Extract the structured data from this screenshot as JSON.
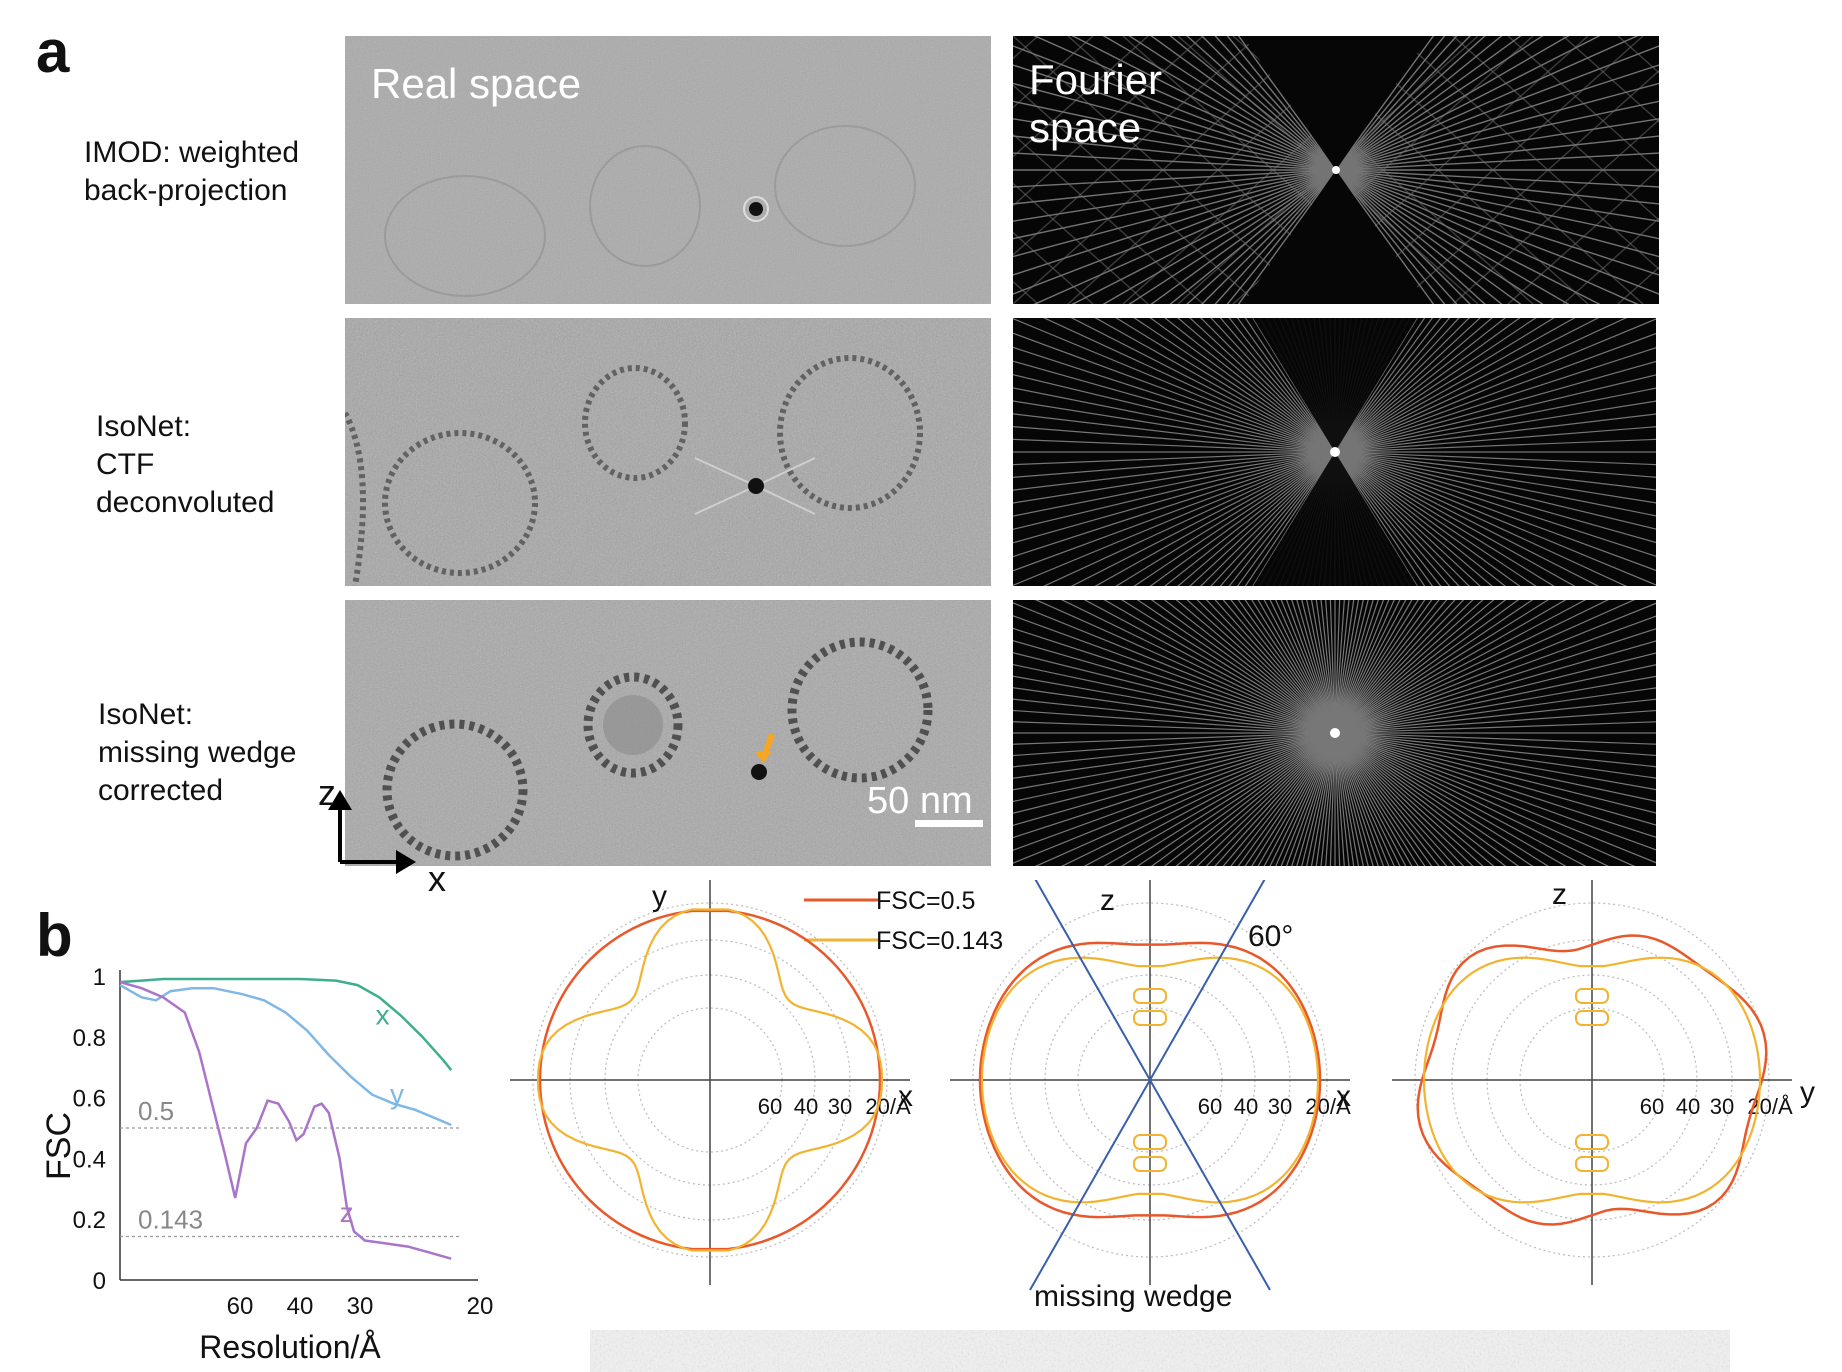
{
  "panels": {
    "a": "a",
    "b": "b"
  },
  "panel_a": {
    "column_headers": {
      "real_space": "Real space",
      "fourier_space": "Fourier\nspace"
    },
    "rows": [
      {
        "label": "IMOD: weighted\nback-projection"
      },
      {
        "label": "IsoNet:\nCTF\ndeconvoluted"
      },
      {
        "label": "IsoNet:\nmissing wedge\ncorrected"
      }
    ],
    "scale_bar": "50 nm",
    "axes": {
      "vertical": "z",
      "horizontal": "x"
    },
    "colors": {
      "real_bg": "#a8a8a8",
      "fourier_bg": "#050505",
      "arrow": "#f5a623"
    }
  },
  "panel_b": {
    "fsc_legend": {
      "fsc05": "FSC=0.5",
      "fsc0143": "FSC=0.143"
    },
    "polar_plots": [
      {
        "vertical": "y",
        "horizontal": "x",
        "ticks": [
          "60",
          "40",
          "30",
          "20/Å"
        ]
      },
      {
        "vertical": "z",
        "horizontal": "x",
        "ticks": [
          "60",
          "40",
          "30",
          "20/Å"
        ],
        "angle_label": "60°",
        "wedge_label": "missing wedge"
      },
      {
        "vertical": "z",
        "horizontal": "y",
        "ticks": [
          "60",
          "40",
          "30",
          "20/Å"
        ]
      }
    ],
    "colors": {
      "fsc05": "#e8582a",
      "fsc0143": "#f2b430",
      "wedge_lines": "#3a5dae"
    }
  },
  "chart_data": {
    "type": "line",
    "xlabel": "Resolution/Å",
    "ylabel": "FSC",
    "x_tick_labels": [
      "60",
      "40",
      "30",
      "20"
    ],
    "y_tick_labels": [
      "1",
      "0.8",
      "0.6",
      "0.4",
      "0.2",
      "0"
    ],
    "ylim": [
      0,
      1
    ],
    "x_unit": "spatial frequency (1/Å)",
    "reference_lines": [
      {
        "label": "0.5",
        "y": 0.5
      },
      {
        "label": "0.143",
        "y": 0.143
      }
    ],
    "series": [
      {
        "name": "x",
        "color": "#3fae8f",
        "points": [
          [
            0.0,
            0.98
          ],
          [
            0.003,
            0.985
          ],
          [
            0.006,
            0.99
          ],
          [
            0.01,
            0.99
          ],
          [
            0.015,
            0.99
          ],
          [
            0.02,
            0.99
          ],
          [
            0.025,
            0.99
          ],
          [
            0.03,
            0.985
          ],
          [
            0.033,
            0.97
          ],
          [
            0.036,
            0.93
          ],
          [
            0.039,
            0.87
          ],
          [
            0.042,
            0.8
          ],
          [
            0.045,
            0.72
          ],
          [
            0.046,
            0.69
          ]
        ]
      },
      {
        "name": "y",
        "color": "#7fb8e6",
        "points": [
          [
            0.0,
            0.97
          ],
          [
            0.003,
            0.93
          ],
          [
            0.005,
            0.92
          ],
          [
            0.007,
            0.95
          ],
          [
            0.01,
            0.96
          ],
          [
            0.013,
            0.96
          ],
          [
            0.017,
            0.94
          ],
          [
            0.02,
            0.92
          ],
          [
            0.023,
            0.88
          ],
          [
            0.026,
            0.82
          ],
          [
            0.029,
            0.74
          ],
          [
            0.032,
            0.67
          ],
          [
            0.035,
            0.61
          ],
          [
            0.038,
            0.58
          ],
          [
            0.041,
            0.56
          ],
          [
            0.044,
            0.53
          ],
          [
            0.046,
            0.51
          ]
        ]
      },
      {
        "name": "z",
        "color": "#a974c9",
        "points": [
          [
            0.0,
            0.98
          ],
          [
            0.003,
            0.96
          ],
          [
            0.006,
            0.93
          ],
          [
            0.009,
            0.88
          ],
          [
            0.011,
            0.75
          ],
          [
            0.013,
            0.56
          ],
          [
            0.0145,
            0.42
          ],
          [
            0.016,
            0.27
          ],
          [
            0.0175,
            0.45
          ],
          [
            0.019,
            0.5
          ],
          [
            0.0205,
            0.59
          ],
          [
            0.022,
            0.58
          ],
          [
            0.0235,
            0.52
          ],
          [
            0.0245,
            0.46
          ],
          [
            0.0255,
            0.48
          ],
          [
            0.027,
            0.57
          ],
          [
            0.028,
            0.58
          ],
          [
            0.029,
            0.55
          ],
          [
            0.0305,
            0.4
          ],
          [
            0.0315,
            0.24
          ],
          [
            0.0325,
            0.16
          ],
          [
            0.034,
            0.13
          ],
          [
            0.037,
            0.12
          ],
          [
            0.04,
            0.11
          ],
          [
            0.043,
            0.09
          ],
          [
            0.046,
            0.07
          ]
        ]
      }
    ]
  }
}
